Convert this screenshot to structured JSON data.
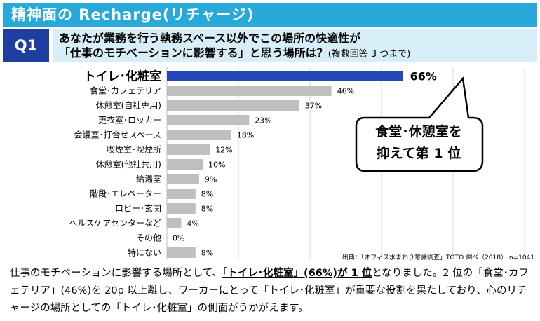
{
  "header": {
    "title": "精神面の Recharge(リチャージ)"
  },
  "question": {
    "number": "Q1",
    "line1": "あなたが業務を行う執務スペース以外でこの場所の快適性が",
    "line2": "「仕事のモチベーションに影響する」と思う場所は？",
    "note": "(複数回答 3 つまで)"
  },
  "callout": {
    "line1": "食堂･休憩室を",
    "line2": "抑えて第 1 位"
  },
  "source": "出典：「オフィス水まわり意識調査」TOTO 調べ（2018） n=1041",
  "footer": {
    "p1": "仕事のモチベーションに影響する場所として、",
    "highlight": "「トイレ･化粧室」(66%)が 1 位",
    "p2": "となりました。2 位の「食堂･カフェテリア」(46%)を 20p 以上離し、ワーカーにとって「トイレ･化粧室」が重要な役割を果たしており、心のリチャージの場所としての「トイレ･化粧室」の側面がうかがえます。"
  },
  "colors": {
    "highlight_bar": "#2448b7",
    "bar": "#bfbfbf",
    "header": "#28a9d9",
    "q_box": "#1f3fa0",
    "q_bg": "#d7eef8"
  },
  "chart_data": {
    "type": "bar",
    "orientation": "horizontal",
    "categories": [
      "トイレ･化粧室",
      "食堂･カフェテリア",
      "休憩室(自社専用)",
      "更衣室･ロッカー",
      "会議室･打合せスペース",
      "喫煙室･喫煙所",
      "休憩室(他社共用)",
      "給湯室",
      "階段･エレベーター",
      "ロビー･玄関",
      "ヘルスケアセンターなど",
      "その他",
      "特にない"
    ],
    "values": [
      66,
      46,
      37,
      23,
      18,
      12,
      10,
      9,
      8,
      8,
      4,
      0,
      8
    ],
    "value_labels": [
      "66%",
      "46%",
      "37%",
      "23%",
      "18%",
      "12%",
      "10%",
      "9%",
      "8%",
      "8%",
      "4%",
      "0%",
      "8%"
    ],
    "xlim": [
      0,
      100
    ],
    "grid": true,
    "highlight_index": 0
  }
}
